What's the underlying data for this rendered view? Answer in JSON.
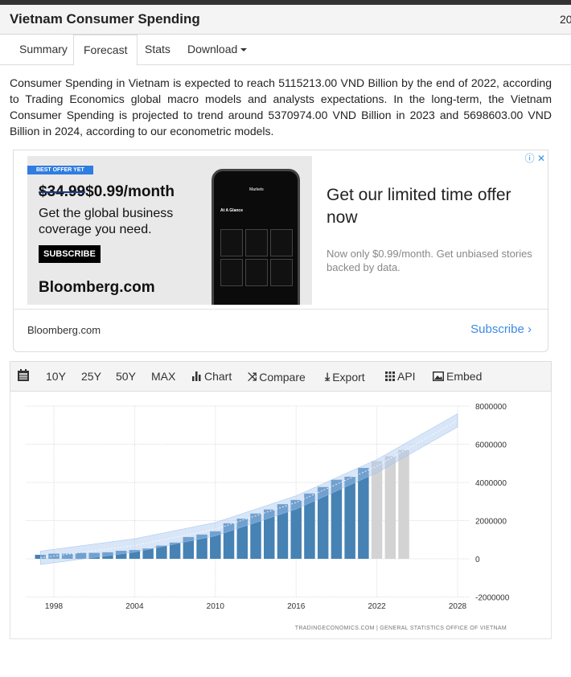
{
  "header": {
    "title": "Vietnam Consumer Spending",
    "right_text": "20"
  },
  "tabs": [
    {
      "label": "Summary"
    },
    {
      "label": "Forecast",
      "active": true
    },
    {
      "label": "Stats"
    },
    {
      "label": "Download"
    }
  ],
  "description": "Consumer Spending in Vietnam is expected to reach 5115213.00 VND Billion by the end of 2022, according to Trading Economics global macro models and analysts expectations. In the long-term, the Vietnam Consumer Spending is projected to trend around 5370974.00 VND Billion in 2023 and 5698603.00 VND Billion in 2024, according to our econometric models.",
  "ad": {
    "badge": "BEST OFFER YET",
    "old_price": "$34.99",
    "new_price": "$0.99/month",
    "tagline": "Get the global business coverage you need.",
    "subscribe_button": "SUBSCRIBE",
    "brand": "Bloomberg.com",
    "phone_title": "Markets",
    "phone_section": "At A Glance",
    "headline": "Get our limited time offer now",
    "subtext": "Now only $0.99/month. Get unbiased stories backed by data.",
    "footer_source": "Bloomberg.com",
    "footer_cta": "Subscribe",
    "accent": "#3b8ae6"
  },
  "toolbar": {
    "items": [
      {
        "label": "10Y"
      },
      {
        "label": "25Y"
      },
      {
        "label": "50Y"
      },
      {
        "label": "MAX"
      },
      {
        "label": "Chart",
        "icon": "bar-chart-icon"
      },
      {
        "label": "Compare",
        "icon": "shuffle-icon"
      },
      {
        "label": "Export",
        "icon": "download-icon"
      },
      {
        "label": "API",
        "icon": "grid-icon"
      },
      {
        "label": "Embed",
        "icon": "image-icon"
      }
    ]
  },
  "chart_data": {
    "type": "bar",
    "x": [
      1997,
      1998,
      1999,
      2000,
      2001,
      2002,
      2003,
      2004,
      2005,
      2006,
      2007,
      2008,
      2009,
      2010,
      2011,
      2012,
      2013,
      2014,
      2015,
      2016,
      2017,
      2018,
      2019,
      2020,
      2021
    ],
    "values": [
      210000,
      270000,
      270000,
      310000,
      310000,
      340000,
      420000,
      460000,
      540000,
      690000,
      850000,
      1140000,
      1270000,
      1440000,
      1860000,
      2100000,
      2370000,
      2580000,
      2860000,
      3080000,
      3420000,
      3760000,
      4140000,
      4300000,
      4760000
    ],
    "forecast": {
      "x": [
        2022,
        2023,
        2024
      ],
      "values": [
        5115213,
        5370974,
        5698603
      ]
    },
    "trend_band": {
      "x": [
        1997,
        2004,
        2010,
        2016,
        2022,
        2028
      ],
      "center": [
        50000,
        700000,
        1550000,
        2950000,
        4850000,
        7250000
      ],
      "half_width": 350000
    },
    "xticks": [
      "1998",
      "2004",
      "2010",
      "2016",
      "2022",
      "2028"
    ],
    "yticks": [
      "8000000",
      "6000000",
      "4000000",
      "2000000",
      "0",
      "-2000000"
    ],
    "ylim": [
      -2000000,
      8000000
    ],
    "xlim": [
      1996,
      2028.5
    ],
    "grid": true,
    "colors": {
      "actual": "#4682b4",
      "forecast": "#d3d3d3",
      "band": "#a9c8f0"
    },
    "source": "TRADINGECONOMICS.COM | GENERAL STATISTICS OFFICE OF VIETNAM"
  }
}
